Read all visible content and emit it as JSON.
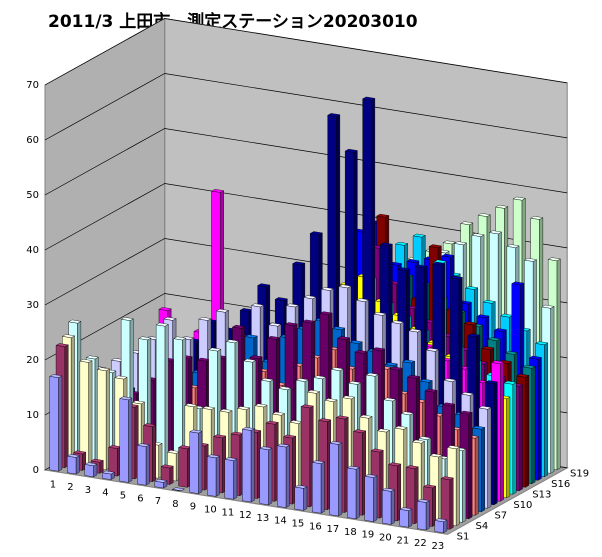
{
  "chart_data": {
    "type": "bar3d",
    "title": "2011/3 上田市　測定ステーション20203010",
    "categories": [
      "1",
      "2",
      "3",
      "4",
      "5",
      "6",
      "7",
      "8",
      "9",
      "10",
      "11",
      "12",
      "13",
      "14",
      "15",
      "16",
      "17",
      "18",
      "19",
      "20",
      "21",
      "22",
      "23"
    ],
    "zcategories": [
      "S1",
      null,
      null,
      "S4",
      null,
      null,
      "S7",
      null,
      null,
      "S10",
      null,
      null,
      "S13",
      null,
      null,
      "S16",
      null,
      null,
      "S19"
    ],
    "ylim": [
      0,
      70
    ],
    "yticks": [
      0,
      10,
      20,
      30,
      40,
      50,
      60,
      70
    ],
    "grid": true,
    "series": [
      {
        "color": "#9999ff",
        "values": [
          17,
          3,
          2,
          1,
          15,
          7,
          1,
          0,
          11,
          7,
          7,
          13,
          10,
          11,
          4,
          9,
          13,
          9,
          8,
          6,
          3,
          5,
          2
        ]
      },
      {
        "color": "#993366",
        "values": [
          22,
          3,
          2,
          5,
          13,
          10,
          3,
          7,
          8,
          10,
          11,
          12,
          14,
          12,
          18,
          16,
          17,
          15,
          12,
          10,
          10,
          7,
          9
        ]
      },
      {
        "color": "#ffffcc",
        "values": [
          23,
          19,
          18,
          17,
          13,
          6,
          5,
          14,
          14,
          14,
          15,
          16,
          15,
          14,
          20,
          19,
          20,
          17,
          15,
          16,
          14,
          12,
          14
        ]
      },
      {
        "color": "#ccffff",
        "values": [
          25,
          19,
          17,
          27,
          24,
          27,
          25,
          13,
          24,
          26,
          23,
          20,
          19,
          21,
          22,
          24,
          22,
          24,
          20,
          18,
          14,
          11,
          13
        ]
      },
      {
        "color": "#660066",
        "values": [
          13,
          12,
          14,
          13,
          16,
          20,
          21,
          21,
          22,
          28,
          23,
          27,
          30,
          31,
          33,
          29,
          27,
          28,
          25,
          24,
          22,
          20,
          19
        ]
      },
      {
        "color": "#ff8080",
        "values": [
          9,
          8,
          10,
          11,
          12,
          14,
          15,
          17,
          16,
          18,
          20,
          18,
          22,
          24,
          26,
          23,
          21,
          24,
          20,
          19,
          17,
          15,
          14
        ]
      },
      {
        "color": "#0066cc",
        "values": [
          8,
          10,
          12,
          14,
          16,
          15,
          17,
          20,
          23,
          25,
          21,
          26,
          28,
          30,
          29,
          27,
          26,
          24,
          25,
          22,
          18,
          17,
          15
        ]
      },
      {
        "color": "#ccccff",
        "values": [
          14,
          16,
          18,
          21,
          25,
          22,
          26,
          28,
          24,
          30,
          27,
          31,
          33,
          35,
          36,
          34,
          32,
          31,
          30,
          27,
          22,
          20,
          18
        ]
      },
      {
        "color": "#000080",
        "values": [
          10,
          12,
          15,
          18,
          19,
          21,
          25,
          24,
          28,
          33,
          31,
          38,
          44,
          66,
          60,
          70,
          44,
          40,
          41,
          42,
          40,
          30,
          22
        ]
      },
      {
        "color": "#ff00ff",
        "values": [
          12,
          14,
          16,
          25,
          20,
          22,
          48,
          19,
          21,
          24,
          26,
          28,
          30,
          32,
          30,
          28,
          27,
          25,
          26,
          24,
          23,
          21,
          25
        ]
      },
      {
        "color": "#ffff00",
        "values": [
          6,
          8,
          10,
          12,
          14,
          16,
          18,
          20,
          22,
          24,
          26,
          28,
          30,
          34,
          36,
          32,
          30,
          28,
          26,
          24,
          22,
          20,
          18
        ]
      },
      {
        "color": "#00ffff",
        "values": [
          5,
          7,
          9,
          11,
          13,
          15,
          17,
          19,
          21,
          23,
          25,
          27,
          29,
          33,
          35,
          31,
          29,
          27,
          40,
          25,
          23,
          21,
          20
        ]
      },
      {
        "color": "#800080",
        "values": [
          4,
          6,
          8,
          10,
          12,
          14,
          16,
          18,
          20,
          22,
          24,
          26,
          28,
          32,
          40,
          34,
          30,
          28,
          26,
          24,
          22,
          20,
          19
        ]
      },
      {
        "color": "#800000",
        "values": [
          3,
          5,
          7,
          9,
          11,
          13,
          15,
          17,
          19,
          21,
          23,
          25,
          27,
          31,
          45,
          33,
          31,
          41,
          30,
          28,
          24,
          22,
          20
        ]
      },
      {
        "color": "#008080",
        "values": [
          5,
          6,
          8,
          10,
          12,
          14,
          16,
          18,
          20,
          22,
          24,
          26,
          28,
          30,
          32,
          34,
          33,
          31,
          29,
          27,
          25,
          23,
          21
        ]
      },
      {
        "color": "#0000ff",
        "values": [
          6,
          7,
          9,
          11,
          13,
          15,
          17,
          19,
          21,
          23,
          25,
          27,
          40,
          42,
          35,
          36,
          37,
          38,
          30,
          28,
          26,
          35,
          22
        ]
      },
      {
        "color": "#00ccff",
        "values": [
          4,
          6,
          8,
          10,
          12,
          14,
          16,
          18,
          20,
          22,
          24,
          26,
          28,
          30,
          38,
          40,
          36,
          34,
          32,
          30,
          28,
          26,
          24
        ]
      },
      {
        "color": "#ccffff",
        "values": [
          5,
          7,
          9,
          11,
          13,
          15,
          17,
          19,
          21,
          23,
          25,
          27,
          29,
          31,
          33,
          35,
          37,
          39,
          41,
          42,
          40,
          38,
          30
        ]
      },
      {
        "color": "#ccffcc",
        "values": [
          6,
          8,
          10,
          12,
          14,
          16,
          18,
          20,
          22,
          24,
          26,
          28,
          30,
          32,
          34,
          36,
          38,
          42,
          44,
          46,
          48,
          45,
          38
        ]
      }
    ]
  }
}
